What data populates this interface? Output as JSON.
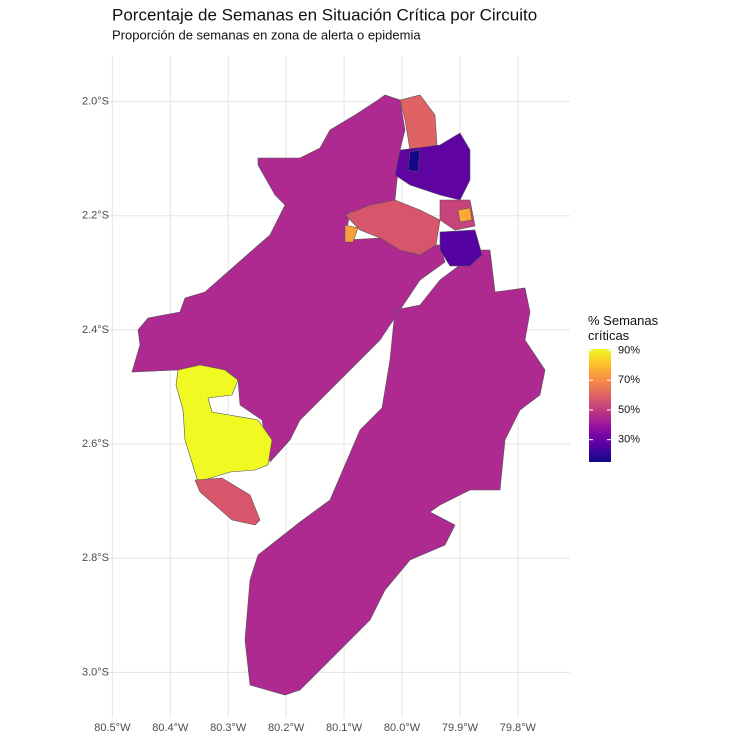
{
  "chart_data": {
    "type": "choropleth",
    "title": "Porcentaje de Semanas en Situación Crítica por Circuito",
    "subtitle": "Proporción de semanas en zona de alerta o epidemia",
    "xlim": [
      -80.53,
      -79.71
    ],
    "ylim": [
      -3.08,
      -1.92
    ],
    "xticks": [
      {
        "value": -80.5,
        "label": "80.5°W"
      },
      {
        "value": -80.4,
        "label": "80.4°W"
      },
      {
        "value": -80.3,
        "label": "80.3°W"
      },
      {
        "value": -80.2,
        "label": "80.2°W"
      },
      {
        "value": -80.1,
        "label": "80.1°W"
      },
      {
        "value": -80.0,
        "label": "80.0°W"
      },
      {
        "value": -79.9,
        "label": "79.9°W"
      },
      {
        "value": -79.8,
        "label": "79.8°W"
      }
    ],
    "yticks": [
      {
        "value": -2.0,
        "label": "2.0°S"
      },
      {
        "value": -2.2,
        "label": "2.2°S"
      },
      {
        "value": -2.4,
        "label": "2.4°S"
      },
      {
        "value": -2.6,
        "label": "2.6°S"
      },
      {
        "value": -2.8,
        "label": "2.8°S"
      },
      {
        "value": -3.0,
        "label": "3.0°S"
      }
    ],
    "grid": true,
    "legend_title": "% Semanas críticas",
    "colorlim": [
      15,
      91
    ],
    "legend_ticks": [
      {
        "value": 30,
        "label": "30%"
      },
      {
        "value": 50,
        "label": "50%"
      },
      {
        "value": 70,
        "label": "70%"
      },
      {
        "value": 90,
        "label": "90%"
      }
    ],
    "values": [
      45,
      45,
      91,
      57,
      60,
      57,
      74,
      28,
      16,
      26,
      52,
      76
    ]
  }
}
